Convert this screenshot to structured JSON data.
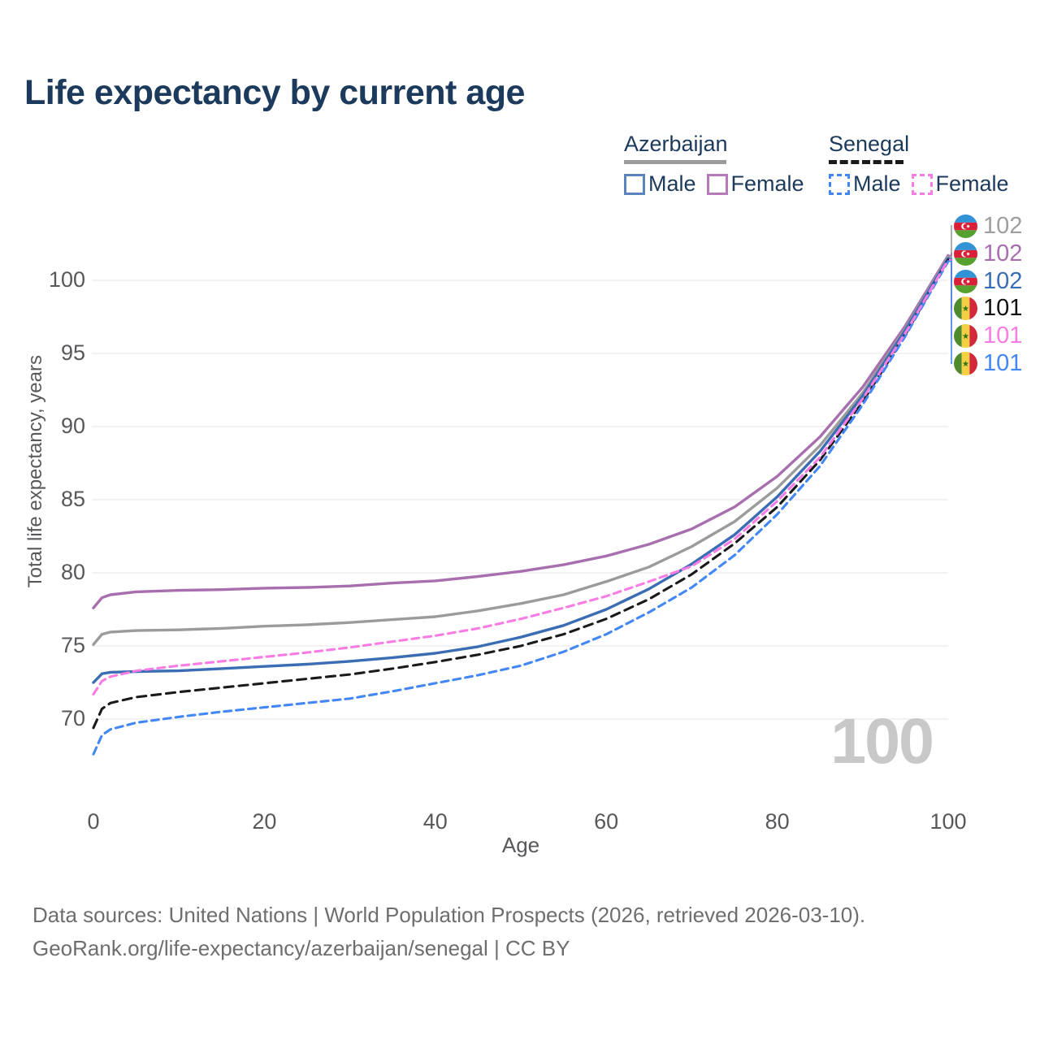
{
  "title": "Life expectancy by current age",
  "legend": {
    "groups": [
      {
        "label": "Azerbaijan",
        "line_style": "solid",
        "line_color": "#9b9b9b",
        "items": [
          {
            "label": "Male",
            "color": "#5b83bd",
            "dashed": false
          },
          {
            "label": "Female",
            "color": "#b77ab8",
            "dashed": false
          }
        ]
      },
      {
        "label": "Senegal",
        "line_style": "dashed",
        "line_color": "#1a1a1a",
        "items": [
          {
            "label": "Male",
            "color": "#4287f5",
            "dashed": true
          },
          {
            "label": "Female",
            "color": "#f97ce4",
            "dashed": true
          }
        ]
      }
    ]
  },
  "watermark": "100",
  "footer": {
    "line1": "Data sources: United Nations | World Population Prospects (2026, retrieved 2026-03-10).",
    "line2": "GeoRank.org/life-expectancy/azerbaijan/senegal | CC BY"
  },
  "chart_data": {
    "type": "line",
    "title": "Life expectancy by current age",
    "xlabel": "Age",
    "ylabel": "Total life expectancy, years",
    "x_ticks": [
      0,
      20,
      40,
      60,
      80,
      100
    ],
    "y_ticks": [
      70,
      75,
      80,
      85,
      90,
      95,
      100
    ],
    "xlim": [
      0,
      100
    ],
    "ylim": [
      66.5,
      103
    ],
    "grid": "horizontal",
    "legend_position": "top-right",
    "series": [
      {
        "name": "Azerbaijan",
        "country": "Azerbaijan",
        "sex": "both",
        "flag": "azerbaijan",
        "color": "#9b9b9b",
        "line_style": "solid",
        "end_label": "102",
        "end_label_color": "#9e9e9e",
        "points": [
          [
            0,
            75.1
          ],
          [
            1,
            75.8
          ],
          [
            2,
            75.95
          ],
          [
            5,
            76.05
          ],
          [
            10,
            76.1
          ],
          [
            15,
            76.2
          ],
          [
            20,
            76.35
          ],
          [
            25,
            76.45
          ],
          [
            30,
            76.6
          ],
          [
            35,
            76.8
          ],
          [
            40,
            77.0
          ],
          [
            45,
            77.4
          ],
          [
            50,
            77.9
          ],
          [
            55,
            78.5
          ],
          [
            60,
            79.4
          ],
          [
            65,
            80.4
          ],
          [
            70,
            81.8
          ],
          [
            75,
            83.5
          ],
          [
            80,
            85.8
          ],
          [
            85,
            88.7
          ],
          [
            90,
            92.3
          ],
          [
            95,
            96.7
          ],
          [
            100,
            101.6
          ]
        ]
      },
      {
        "name": "Azerbaijan Female",
        "country": "Azerbaijan",
        "sex": "female",
        "flag": "azerbaijan",
        "color": "#a76fae",
        "line_style": "solid",
        "end_label": "102",
        "end_label_color": "#a76fae",
        "points": [
          [
            0,
            77.6
          ],
          [
            1,
            78.3
          ],
          [
            2,
            78.5
          ],
          [
            5,
            78.7
          ],
          [
            10,
            78.8
          ],
          [
            15,
            78.85
          ],
          [
            20,
            78.95
          ],
          [
            25,
            79.0
          ],
          [
            30,
            79.1
          ],
          [
            35,
            79.3
          ],
          [
            40,
            79.45
          ],
          [
            45,
            79.75
          ],
          [
            50,
            80.1
          ],
          [
            55,
            80.55
          ],
          [
            60,
            81.15
          ],
          [
            65,
            81.95
          ],
          [
            70,
            83.0
          ],
          [
            75,
            84.5
          ],
          [
            80,
            86.6
          ],
          [
            85,
            89.3
          ],
          [
            90,
            92.7
          ],
          [
            95,
            96.9
          ],
          [
            100,
            101.7
          ]
        ]
      },
      {
        "name": "Azerbaijan Male",
        "country": "Azerbaijan",
        "sex": "male",
        "flag": "azerbaijan",
        "color": "#3a6db3",
        "line_style": "solid",
        "end_label": "102",
        "end_label_color": "#3a6db3",
        "points": [
          [
            0,
            72.5
          ],
          [
            1,
            73.1
          ],
          [
            2,
            73.2
          ],
          [
            5,
            73.25
          ],
          [
            10,
            73.3
          ],
          [
            15,
            73.45
          ],
          [
            20,
            73.6
          ],
          [
            25,
            73.75
          ],
          [
            30,
            73.95
          ],
          [
            35,
            74.2
          ],
          [
            40,
            74.5
          ],
          [
            45,
            74.95
          ],
          [
            50,
            75.6
          ],
          [
            55,
            76.4
          ],
          [
            60,
            77.5
          ],
          [
            65,
            78.9
          ],
          [
            70,
            80.6
          ],
          [
            75,
            82.6
          ],
          [
            80,
            85.2
          ],
          [
            85,
            88.3
          ],
          [
            90,
            92.1
          ],
          [
            95,
            96.6
          ],
          [
            100,
            101.5
          ]
        ]
      },
      {
        "name": "Senegal",
        "country": "Senegal",
        "sex": "both",
        "flag": "senegal",
        "color": "#1a1a1a",
        "line_style": "dashed",
        "end_label": "101",
        "end_label_color": "#111111",
        "points": [
          [
            0,
            69.4
          ],
          [
            1,
            70.7
          ],
          [
            2,
            71.1
          ],
          [
            5,
            71.5
          ],
          [
            10,
            71.85
          ],
          [
            15,
            72.15
          ],
          [
            20,
            72.45
          ],
          [
            25,
            72.75
          ],
          [
            30,
            73.05
          ],
          [
            35,
            73.45
          ],
          [
            40,
            73.9
          ],
          [
            45,
            74.4
          ],
          [
            50,
            75.0
          ],
          [
            55,
            75.8
          ],
          [
            60,
            76.85
          ],
          [
            65,
            78.2
          ],
          [
            70,
            79.9
          ],
          [
            75,
            82.0
          ],
          [
            80,
            84.5
          ],
          [
            85,
            87.7
          ],
          [
            90,
            91.7
          ],
          [
            95,
            96.3
          ],
          [
            100,
            101.4
          ]
        ]
      },
      {
        "name": "Senegal Female",
        "country": "Senegal",
        "sex": "female",
        "flag": "senegal",
        "color": "#f97ce4",
        "line_style": "dashed",
        "end_label": "101",
        "end_label_color": "#f97ce4",
        "points": [
          [
            0,
            71.7
          ],
          [
            1,
            72.6
          ],
          [
            2,
            72.9
          ],
          [
            5,
            73.3
          ],
          [
            10,
            73.65
          ],
          [
            15,
            73.95
          ],
          [
            20,
            74.25
          ],
          [
            25,
            74.55
          ],
          [
            30,
            74.9
          ],
          [
            35,
            75.3
          ],
          [
            40,
            75.7
          ],
          [
            45,
            76.2
          ],
          [
            50,
            76.85
          ],
          [
            55,
            77.6
          ],
          [
            60,
            78.4
          ],
          [
            65,
            79.4
          ],
          [
            70,
            80.45
          ],
          [
            75,
            82.3
          ],
          [
            80,
            84.9
          ],
          [
            85,
            87.9
          ],
          [
            90,
            91.9
          ],
          [
            95,
            96.4
          ],
          [
            100,
            101.4
          ]
        ]
      },
      {
        "name": "Senegal Male",
        "country": "Senegal",
        "sex": "male",
        "flag": "senegal",
        "color": "#4287f5",
        "line_style": "dashed",
        "end_label": "101",
        "end_label_color": "#4287f5",
        "points": [
          [
            0,
            67.6
          ],
          [
            1,
            68.9
          ],
          [
            2,
            69.3
          ],
          [
            5,
            69.75
          ],
          [
            10,
            70.15
          ],
          [
            15,
            70.5
          ],
          [
            20,
            70.8
          ],
          [
            25,
            71.1
          ],
          [
            30,
            71.4
          ],
          [
            35,
            71.9
          ],
          [
            40,
            72.45
          ],
          [
            45,
            73.0
          ],
          [
            50,
            73.65
          ],
          [
            55,
            74.6
          ],
          [
            60,
            75.8
          ],
          [
            65,
            77.3
          ],
          [
            70,
            79.0
          ],
          [
            75,
            81.2
          ],
          [
            80,
            84.0
          ],
          [
            85,
            87.3
          ],
          [
            90,
            91.5
          ],
          [
            95,
            96.2
          ],
          [
            100,
            101.3
          ]
        ]
      }
    ]
  }
}
